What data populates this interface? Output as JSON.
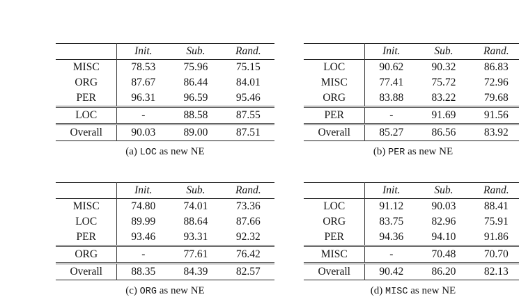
{
  "colors": {
    "background": "#ffffff",
    "text": "#141414",
    "rule": "#1c1c1c",
    "double_rule": "#5b5b5b"
  },
  "tables": [
    {
      "caption_prefix": "(a)",
      "caption_entity": "LOC",
      "caption_suffix": "as new NE",
      "columns": [
        "Init.",
        "Sub.",
        "Rand."
      ],
      "rows": [
        {
          "label": "MISC",
          "values": [
            "78.53",
            "75.96",
            "75.15"
          ]
        },
        {
          "label": "ORG",
          "values": [
            "87.67",
            "86.44",
            "84.01"
          ]
        },
        {
          "label": "PER",
          "values": [
            "96.31",
            "96.59",
            "95.46"
          ]
        }
      ],
      "new_ne_row": {
        "label": "LOC",
        "values": [
          "-",
          "88.58",
          "87.55"
        ]
      },
      "overall_row": {
        "label": "Overall",
        "values": [
          "90.03",
          "89.00",
          "87.51"
        ]
      }
    },
    {
      "caption_prefix": "(b)",
      "caption_entity": "PER",
      "caption_suffix": "as new NE",
      "columns": [
        "Init.",
        "Sub.",
        "Rand."
      ],
      "rows": [
        {
          "label": "LOC",
          "values": [
            "90.62",
            "90.32",
            "86.83"
          ]
        },
        {
          "label": "MISC",
          "values": [
            "77.41",
            "75.72",
            "72.96"
          ]
        },
        {
          "label": "ORG",
          "values": [
            "83.88",
            "83.22",
            "79.68"
          ]
        }
      ],
      "new_ne_row": {
        "label": "PER",
        "values": [
          "-",
          "91.69",
          "91.56"
        ]
      },
      "overall_row": {
        "label": "Overall",
        "values": [
          "85.27",
          "86.56",
          "83.92"
        ]
      }
    },
    {
      "caption_prefix": "(c)",
      "caption_entity": "ORG",
      "caption_suffix": "as new NE",
      "columns": [
        "Init.",
        "Sub.",
        "Rand."
      ],
      "rows": [
        {
          "label": "MISC",
          "values": [
            "74.80",
            "74.01",
            "73.36"
          ]
        },
        {
          "label": "LOC",
          "values": [
            "89.99",
            "88.64",
            "87.66"
          ]
        },
        {
          "label": "PER",
          "values": [
            "93.46",
            "93.31",
            "92.32"
          ]
        }
      ],
      "new_ne_row": {
        "label": "ORG",
        "values": [
          "-",
          "77.61",
          "76.42"
        ]
      },
      "overall_row": {
        "label": "Overall",
        "values": [
          "88.35",
          "84.39",
          "82.57"
        ]
      }
    },
    {
      "caption_prefix": "(d)",
      "caption_entity": "MISC",
      "caption_suffix": "as new NE",
      "columns": [
        "Init.",
        "Sub.",
        "Rand."
      ],
      "rows": [
        {
          "label": "LOC",
          "values": [
            "91.12",
            "90.03",
            "88.41"
          ]
        },
        {
          "label": "ORG",
          "values": [
            "83.75",
            "82.96",
            "75.91"
          ]
        },
        {
          "label": "PER",
          "values": [
            "94.36",
            "94.10",
            "91.86"
          ]
        }
      ],
      "new_ne_row": {
        "label": "MISC",
        "values": [
          "-",
          "70.48",
          "70.70"
        ]
      },
      "overall_row": {
        "label": "Overall",
        "values": [
          "90.42",
          "86.20",
          "82.13"
        ]
      }
    }
  ]
}
